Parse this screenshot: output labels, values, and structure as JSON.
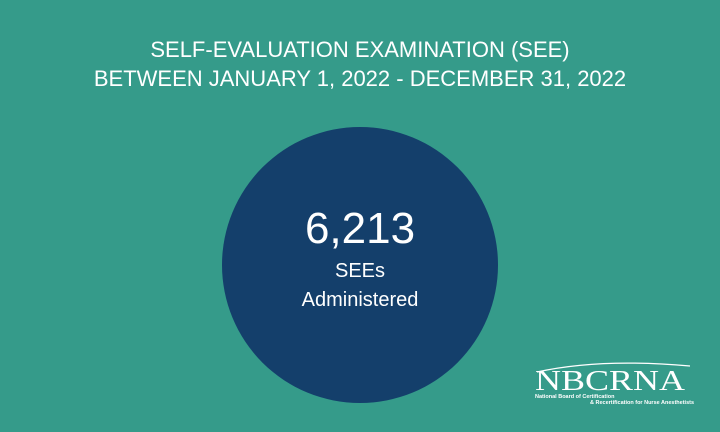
{
  "header": {
    "title": "SELF-EVALUATION EXAMINATION (SEE)",
    "subtitle": "BETWEEN JANUARY 1, 2022 - DECEMBER 31, 2022"
  },
  "stat": {
    "number": "6,213",
    "label_line1": "SEEs",
    "label_line2": "Administered"
  },
  "logo": {
    "name": "NBCRNA",
    "tagline_line1": "National Board of Certification",
    "tagline_line2": "& Recertification for Nurse Anesthetists"
  }
}
